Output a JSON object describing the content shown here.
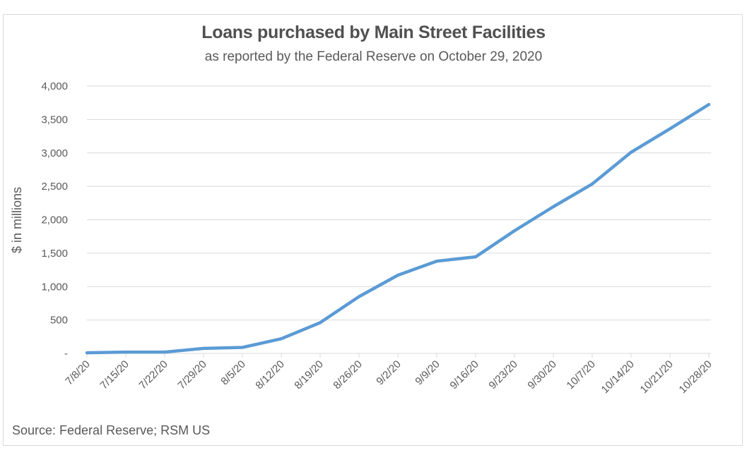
{
  "chart_data": {
    "type": "line",
    "title": "Loans purchased by Main Street Facilities",
    "subtitle": "as reported by the Federal Reserve on October 29, 2020",
    "xlabel": "",
    "ylabel": "$ in millions",
    "source": "Source: Federal Reserve; RSM US",
    "ylim": [
      0,
      4000
    ],
    "y_ticks": [
      0,
      500,
      1000,
      1500,
      2000,
      2500,
      3000,
      3500,
      4000
    ],
    "y_tick_labels": [
      "-",
      "500",
      "1,000",
      "1,500",
      "2,000",
      "2,500",
      "3,000",
      "3,500",
      "4,000"
    ],
    "grid": true,
    "legend": "none",
    "categories": [
      "7/8/20",
      "7/15/20",
      "7/22/20",
      "7/29/20",
      "8/5/20",
      "8/12/20",
      "8/19/20",
      "8/26/20",
      "9/2/20",
      "9/9/20",
      "9/16/20",
      "9/23/20",
      "9/30/20",
      "10/7/20",
      "10/14/20",
      "10/21/20",
      "10/28/20"
    ],
    "series": [
      {
        "name": "Loans purchased",
        "color": "#5b9bd5",
        "values": [
          10,
          20,
          20,
          75,
          90,
          220,
          460,
          850,
          1170,
          1380,
          1445,
          1835,
          2195,
          2535,
          3010,
          3360,
          3725
        ]
      }
    ]
  }
}
